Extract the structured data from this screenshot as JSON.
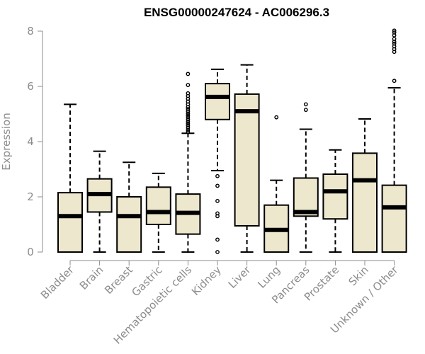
{
  "chart_data": {
    "type": "box",
    "title": "ENSG00000247624 - AC006296.3",
    "xlabel": "",
    "ylabel": "Expression",
    "ylim": [
      0,
      8
    ],
    "yticks": [
      0,
      2,
      4,
      6,
      8
    ],
    "categories": [
      "Bladder",
      "Brain",
      "Breast",
      "Gastric",
      "Hematopoietic cells",
      "Kidney",
      "Liver",
      "Lung",
      "Pancreas",
      "Prostate",
      "Skin",
      "Unknown / Other"
    ],
    "series": [
      {
        "values": [
          {
            "min": 0,
            "q1": 0,
            "median": 1.3,
            "q3": 2.15,
            "max": 5.35,
            "outliers": []
          },
          {
            "min": 0,
            "q1": 1.45,
            "median": 2.1,
            "q3": 2.65,
            "max": 3.65,
            "outliers": []
          },
          {
            "min": 0,
            "q1": 0,
            "median": 1.3,
            "q3": 2.0,
            "max": 3.25,
            "outliers": []
          },
          {
            "min": 0,
            "q1": 1.0,
            "median": 1.45,
            "q3": 2.35,
            "max": 2.85,
            "outliers": []
          },
          {
            "min": 0,
            "q1": 0.65,
            "median": 1.42,
            "q3": 2.1,
            "max": 4.3,
            "outliers": [
              4.35,
              4.42,
              4.5,
              4.58,
              4.65,
              4.72,
              4.8,
              4.88,
              4.95,
              5.02,
              5.1,
              5.18,
              5.25,
              5.35,
              5.45,
              5.55,
              5.65,
              5.75,
              6.05,
              6.45
            ]
          },
          {
            "min": 2.95,
            "q1": 4.8,
            "median": 5.62,
            "q3": 6.1,
            "max": 6.62,
            "outliers": [
              0,
              0.45,
              1.3,
              1.4,
              1.85,
              2.4,
              2.75
            ]
          },
          {
            "min": 0,
            "q1": 0.95,
            "median": 5.1,
            "q3": 5.72,
            "max": 6.78,
            "outliers": []
          },
          {
            "min": 0,
            "q1": 0,
            "median": 0.8,
            "q3": 1.7,
            "max": 2.6,
            "outliers": [
              4.88
            ]
          },
          {
            "min": 0,
            "q1": 1.3,
            "median": 1.45,
            "q3": 2.68,
            "max": 4.45,
            "outliers": [
              5.15,
              5.35
            ]
          },
          {
            "min": 0,
            "q1": 1.2,
            "median": 2.2,
            "q3": 2.82,
            "max": 3.7,
            "outliers": []
          },
          {
            "min": 0,
            "q1": 0,
            "median": 2.6,
            "q3": 3.58,
            "max": 4.82,
            "outliers": []
          },
          {
            "min": 0,
            "q1": 0,
            "median": 1.62,
            "q3": 2.42,
            "max": 5.95,
            "outliers": [
              6.2,
              7.25,
              7.35,
              7.45,
              7.55,
              7.62,
              7.72,
              7.85,
              7.95,
              8.02
            ]
          }
        ]
      }
    ],
    "colors": {
      "box_fill": "#ede7cd",
      "box_stroke": "#000000",
      "axis": "#8c8c8c"
    },
    "grid": false,
    "legend": "none"
  }
}
